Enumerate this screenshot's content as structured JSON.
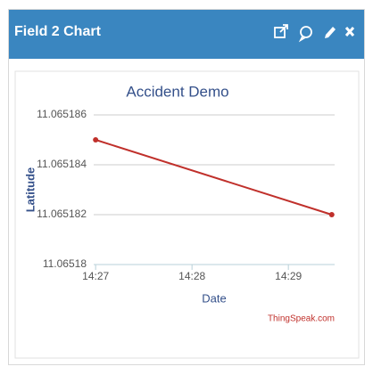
{
  "header": {
    "title": "Field 2 Chart"
  },
  "chart_data": {
    "type": "line",
    "title": "Accident Demo",
    "x_label": "Date",
    "y_label": "Latitude",
    "credit": "ThingSpeak.com",
    "x": [
      867,
      869.45
    ],
    "series": [
      {
        "name": "Latitude",
        "color": "#c0302b",
        "values": [
          11.065185,
          11.065182
        ]
      }
    ],
    "xlim": [
      866.98,
      869.48
    ],
    "xticks": [
      {
        "value": 867,
        "label": "14:27"
      },
      {
        "value": 868,
        "label": "14:28"
      },
      {
        "value": 869,
        "label": "14:29"
      }
    ],
    "ylim": [
      11.06518,
      11.065186
    ],
    "yticks": [
      11.065186,
      11.065184,
      11.065182,
      11.06518
    ],
    "grid": true
  }
}
